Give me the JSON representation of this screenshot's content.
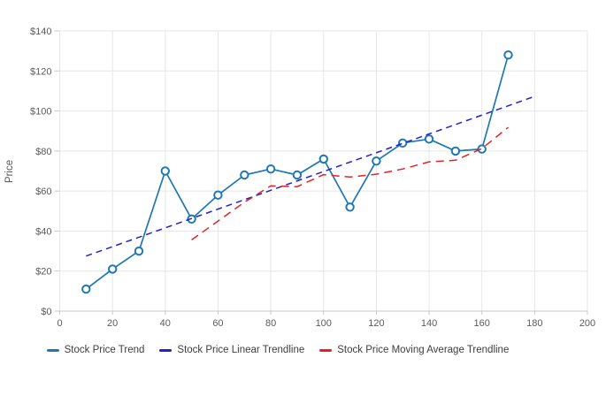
{
  "chart_data": {
    "type": "line",
    "title": "",
    "xlabel": "",
    "ylabel": "Price",
    "xlim": [
      0,
      200
    ],
    "ylim": [
      0,
      140
    ],
    "xticks": [
      0,
      20,
      40,
      60,
      80,
      100,
      120,
      140,
      160,
      180,
      200
    ],
    "yticks": [
      0,
      20,
      40,
      60,
      80,
      100,
      120,
      140
    ],
    "ytick_labels": [
      "$0",
      "$20",
      "$40",
      "$60",
      "$80",
      "$100",
      "$120",
      "$140"
    ],
    "grid": true,
    "legend_position": "bottom",
    "series": [
      {
        "name": "Stock Price Trend",
        "style": "solid",
        "markers": true,
        "color": "#1f77b4",
        "x": [
          10,
          20,
          30,
          40,
          50,
          60,
          70,
          80,
          90,
          100,
          110,
          120,
          130,
          140,
          150,
          160,
          170
        ],
        "y": [
          11,
          21,
          30,
          70,
          46,
          58,
          68,
          71,
          68,
          76,
          52,
          75,
          84,
          86,
          80,
          81,
          128
        ]
      },
      {
        "name": "Stock Price Linear Trendline",
        "style": "dashed",
        "markers": false,
        "color": "#2222cc",
        "x": [
          10,
          180
        ],
        "y": [
          27.5,
          107.3
        ]
      },
      {
        "name": "Stock Price Moving Average Trendline",
        "style": "dashed",
        "markers": false,
        "color": "#e32227",
        "x": [
          50,
          60,
          70,
          80,
          90,
          100,
          110,
          120,
          130,
          140,
          150,
          160,
          170
        ],
        "y": [
          35.6,
          45.0,
          54.4,
          62.6,
          62.2,
          68.2,
          67.0,
          68.4,
          71.0,
          74.6,
          75.4,
          81.2,
          91.8
        ]
      }
    ]
  },
  "colors": {
    "background": "#ffffff",
    "grid": "#e6e6e6",
    "axis_line": "#c9c9c9",
    "tick": "#c9c9c9",
    "tick_label": "#5a5a5a",
    "legend_text": "#3d3d3d"
  }
}
